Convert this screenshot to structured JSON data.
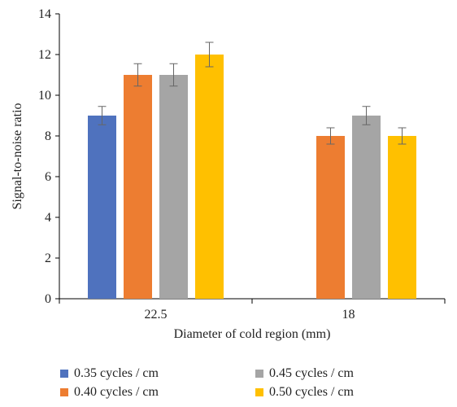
{
  "chart_data": {
    "type": "bar",
    "categories": [
      "22.5",
      "18"
    ],
    "series": [
      {
        "name": "0.35 cycles / cm",
        "color": "#4f72be",
        "values": [
          9,
          null
        ],
        "errors": [
          0.45,
          null
        ]
      },
      {
        "name": "0.40 cycles / cm",
        "color": "#ed7d31",
        "values": [
          11,
          8
        ],
        "errors": [
          0.55,
          0.4
        ]
      },
      {
        "name": "0.45 cycles / cm",
        "color": "#a5a5a5",
        "values": [
          11,
          9
        ],
        "errors": [
          0.55,
          0.45
        ]
      },
      {
        "name": "0.50 cycles / cm",
        "color": "#ffc000",
        "values": [
          12,
          8
        ],
        "errors": [
          0.6,
          0.4
        ]
      }
    ],
    "xlabel": "Diameter of cold region (mm)",
    "ylabel": "Signal-to-noise ratio",
    "ylim": [
      0,
      14
    ],
    "yticks": [
      "0",
      "2",
      "4",
      "6",
      "8",
      "10",
      "12",
      "14"
    ],
    "grid": false,
    "legend_position": "bottom"
  }
}
